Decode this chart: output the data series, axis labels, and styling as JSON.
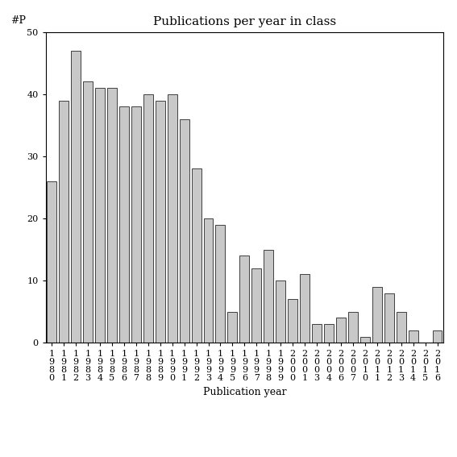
{
  "title": "Publications per year in class",
  "xlabel": "Publication year",
  "ylabel": "#P",
  "bar_color": "#c8c8c8",
  "bar_edgecolor": "#000000",
  "ylim": [
    0,
    50
  ],
  "yticks": [
    0,
    10,
    20,
    30,
    40,
    50
  ],
  "categories": [
    "1980",
    "1981",
    "1982",
    "1983",
    "1984",
    "1985",
    "1986",
    "1987",
    "1988",
    "1989",
    "1990",
    "1991",
    "1992",
    "1993",
    "1994",
    "1995",
    "1996",
    "1997",
    "1998",
    "1999",
    "2000",
    "2001",
    "2003",
    "2004",
    "2006",
    "2007",
    "2010",
    "2011",
    "2012",
    "2013",
    "2014",
    "2015",
    "2016"
  ],
  "values": [
    26,
    39,
    47,
    42,
    41,
    41,
    38,
    38,
    40,
    39,
    40,
    36,
    28,
    20,
    19,
    5,
    14,
    12,
    15,
    10,
    7,
    11,
    3,
    3,
    4,
    5,
    1,
    9,
    8,
    5,
    2,
    0,
    2
  ],
  "title_fontsize": 11,
  "axis_label_fontsize": 9,
  "tick_fontsize": 8
}
